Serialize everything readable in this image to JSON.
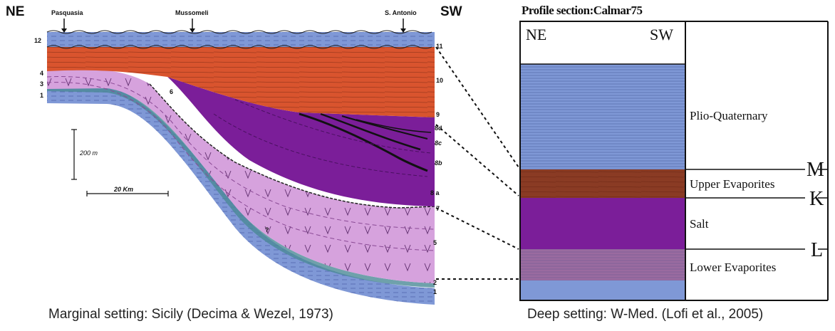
{
  "left_section": {
    "ne_label": "NE",
    "sw_label": "SW",
    "locations": [
      "Pasquasia",
      "Mussomeli",
      "S. Antonio"
    ],
    "left_numbers": [
      "12",
      "4",
      "3",
      "1"
    ],
    "right_numbers": [
      "11",
      "10",
      "9",
      "8d",
      "8c",
      "8b",
      "8 a",
      "7",
      "5",
      "2",
      "1"
    ],
    "scale_vertical": "200 m",
    "scale_horizontal": "20 Km",
    "question_marks": [
      "6",
      "?"
    ],
    "caption": "Marginal setting: Sicily (Decima & Wezel, 1973)"
  },
  "right_section": {
    "title": "Profile section:Calmar75",
    "ne_label": "NE",
    "sw_label": "SW",
    "units": [
      "Plio-Quaternary",
      "Upper Evaporites",
      "Salt",
      "Lower Evaporites"
    ],
    "markers": [
      "M",
      "K",
      "L"
    ],
    "caption": "Deep setting: W-Med. (Lofi et al., 2005)"
  },
  "colors": {
    "blue": "#7f98d6",
    "orange": "#d9542e",
    "purple": "#7b1e99",
    "pink": "#d6a2dd",
    "brown": "#8a3b24"
  }
}
